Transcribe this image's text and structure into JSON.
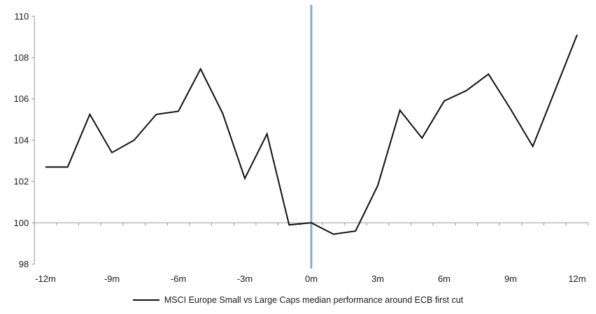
{
  "chart_data": {
    "type": "line",
    "title": "",
    "x": [
      -12,
      -11,
      -10,
      -9,
      -8,
      -7,
      -6,
      -5,
      -4,
      -3,
      -2,
      -1,
      0,
      1,
      2,
      3,
      4,
      5,
      6,
      7,
      8,
      9,
      10,
      11,
      12
    ],
    "series": [
      {
        "name": "MSCI Europe Small vs Large Caps median performance around ECB first cut",
        "color": "#101010",
        "values": [
          102.7,
          102.7,
          105.25,
          103.4,
          104.0,
          105.25,
          105.4,
          107.45,
          105.3,
          102.15,
          104.3,
          99.9,
          100.0,
          99.45,
          99.6,
          101.8,
          105.45,
          104.1,
          105.9,
          106.4,
          107.2,
          105.5,
          103.7,
          106.4,
          109.1
        ]
      }
    ],
    "x_tick_labels": [
      "-12m",
      "-9m",
      "-6m",
      "-3m",
      "0m",
      "3m",
      "6m",
      "9m",
      "12m"
    ],
    "x_tick_positions": [
      -12,
      -9,
      -6,
      -3,
      0,
      3,
      6,
      9,
      12
    ],
    "y_tick_labels": [
      "98",
      "100",
      "102",
      "104",
      "106",
      "108",
      "110"
    ],
    "y_ticks": [
      98,
      100,
      102,
      104,
      106,
      108,
      110
    ],
    "xlim": [
      -12.5,
      12.5
    ],
    "ylim": [
      98,
      110
    ],
    "baseline_value": 100,
    "event_line": {
      "x": 0,
      "color": "#7fa8d2"
    },
    "axis_color": "#a6a6a6",
    "text_color": "#1a1a1a",
    "grid": false,
    "legend_position": "bottom"
  }
}
